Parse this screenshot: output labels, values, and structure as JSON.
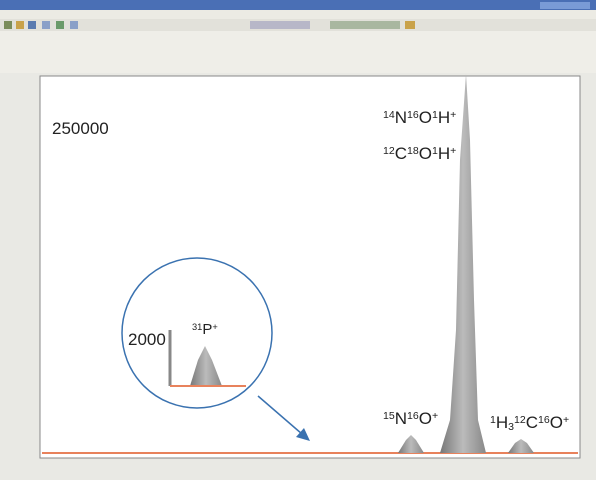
{
  "spectrum": {
    "scale_label": "250000",
    "annotations": [
      {
        "parts": [
          {
            "text": "14",
            "style": "sup"
          },
          {
            "text": "N",
            "style": "base"
          },
          {
            "text": "16",
            "style": "sup"
          },
          {
            "text": "O",
            "style": "base"
          },
          {
            "text": "1",
            "style": "sup"
          },
          {
            "text": "H",
            "style": "base"
          },
          {
            "text": "+",
            "style": "sup"
          }
        ]
      },
      {
        "parts": [
          {
            "text": "12",
            "style": "sup"
          },
          {
            "text": "C",
            "style": "base"
          },
          {
            "text": "18",
            "style": "sup"
          },
          {
            "text": "O",
            "style": "base"
          },
          {
            "text": "1",
            "style": "sup"
          },
          {
            "text": "H",
            "style": "base"
          },
          {
            "text": "+",
            "style": "sup"
          }
        ]
      },
      {
        "parts": [
          {
            "text": "15",
            "style": "sup"
          },
          {
            "text": "N",
            "style": "base"
          },
          {
            "text": "16",
            "style": "sup"
          },
          {
            "text": "O",
            "style": "base"
          },
          {
            "text": "+",
            "style": "sup"
          }
        ]
      },
      {
        "parts": [
          {
            "text": "1",
            "style": "sup"
          },
          {
            "text": "H",
            "style": "base"
          },
          {
            "text": "3",
            "style": "sub"
          },
          {
            "text": "12",
            "style": "sup"
          },
          {
            "text": "C",
            "style": "base"
          },
          {
            "text": "16",
            "style": "sup"
          },
          {
            "text": "O",
            "style": "base"
          },
          {
            "text": "+",
            "style": "sup"
          }
        ]
      }
    ],
    "inset": {
      "scale_label": "2000",
      "label": {
        "parts": [
          {
            "text": "31",
            "style": "sup"
          },
          {
            "text": "P",
            "style": "base"
          },
          {
            "text": "+",
            "style": "sup"
          }
        ]
      }
    }
  }
}
